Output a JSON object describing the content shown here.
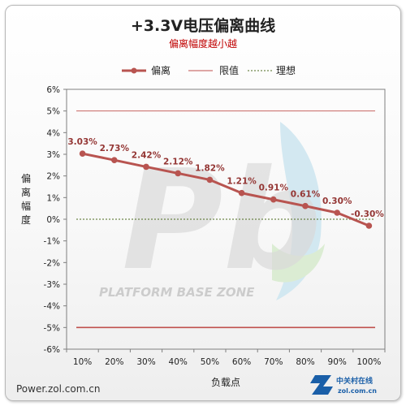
{
  "chart_data": {
    "type": "line",
    "title": "+3.3V电压偏离曲线",
    "subtitle": "偏离幅度越小越",
    "xlabel": "负载点",
    "ylabel": "偏离幅度",
    "categories": [
      "10%",
      "20%",
      "30%",
      "40%",
      "50%",
      "60%",
      "70%",
      "80%",
      "90%",
      "100%"
    ],
    "ylim": [
      -6,
      6
    ],
    "yticks": [
      6,
      5,
      4,
      3,
      2,
      1,
      0,
      -1,
      -2,
      -3,
      -4,
      -5,
      -6
    ],
    "ytick_labels": [
      "6%",
      "5%",
      "4%",
      "3%",
      "2%",
      "1%",
      "0%",
      "-1%",
      "-2%",
      "-3%",
      "-4%",
      "-5%",
      "-6%"
    ],
    "series": [
      {
        "name": "偏离",
        "values": [
          3.03,
          2.73,
          2.42,
          2.12,
          1.82,
          1.21,
          0.91,
          0.61,
          0.3,
          -0.3
        ],
        "labels": [
          "3.03%",
          "2.73%",
          "2.42%",
          "2.12%",
          "1.82%",
          "1.21%",
          "0.91%",
          "0.61%",
          "0.30%",
          "-0.30%"
        ],
        "color": "#b85450"
      }
    ],
    "limit": {
      "name": "限值",
      "values": [
        5,
        -5
      ],
      "color": "#c0504d"
    },
    "ideal": {
      "name": "理想",
      "value": 0,
      "color": "#4d6b1f"
    },
    "legend_position": "top"
  },
  "footer": {
    "source": "Power.zol.com.cn",
    "logo_main": "中关村在线",
    "logo_sub": "zol.com.cn"
  },
  "watermark": {
    "text": "PLATFORM BASE ZONE",
    "letters": "Pb"
  }
}
